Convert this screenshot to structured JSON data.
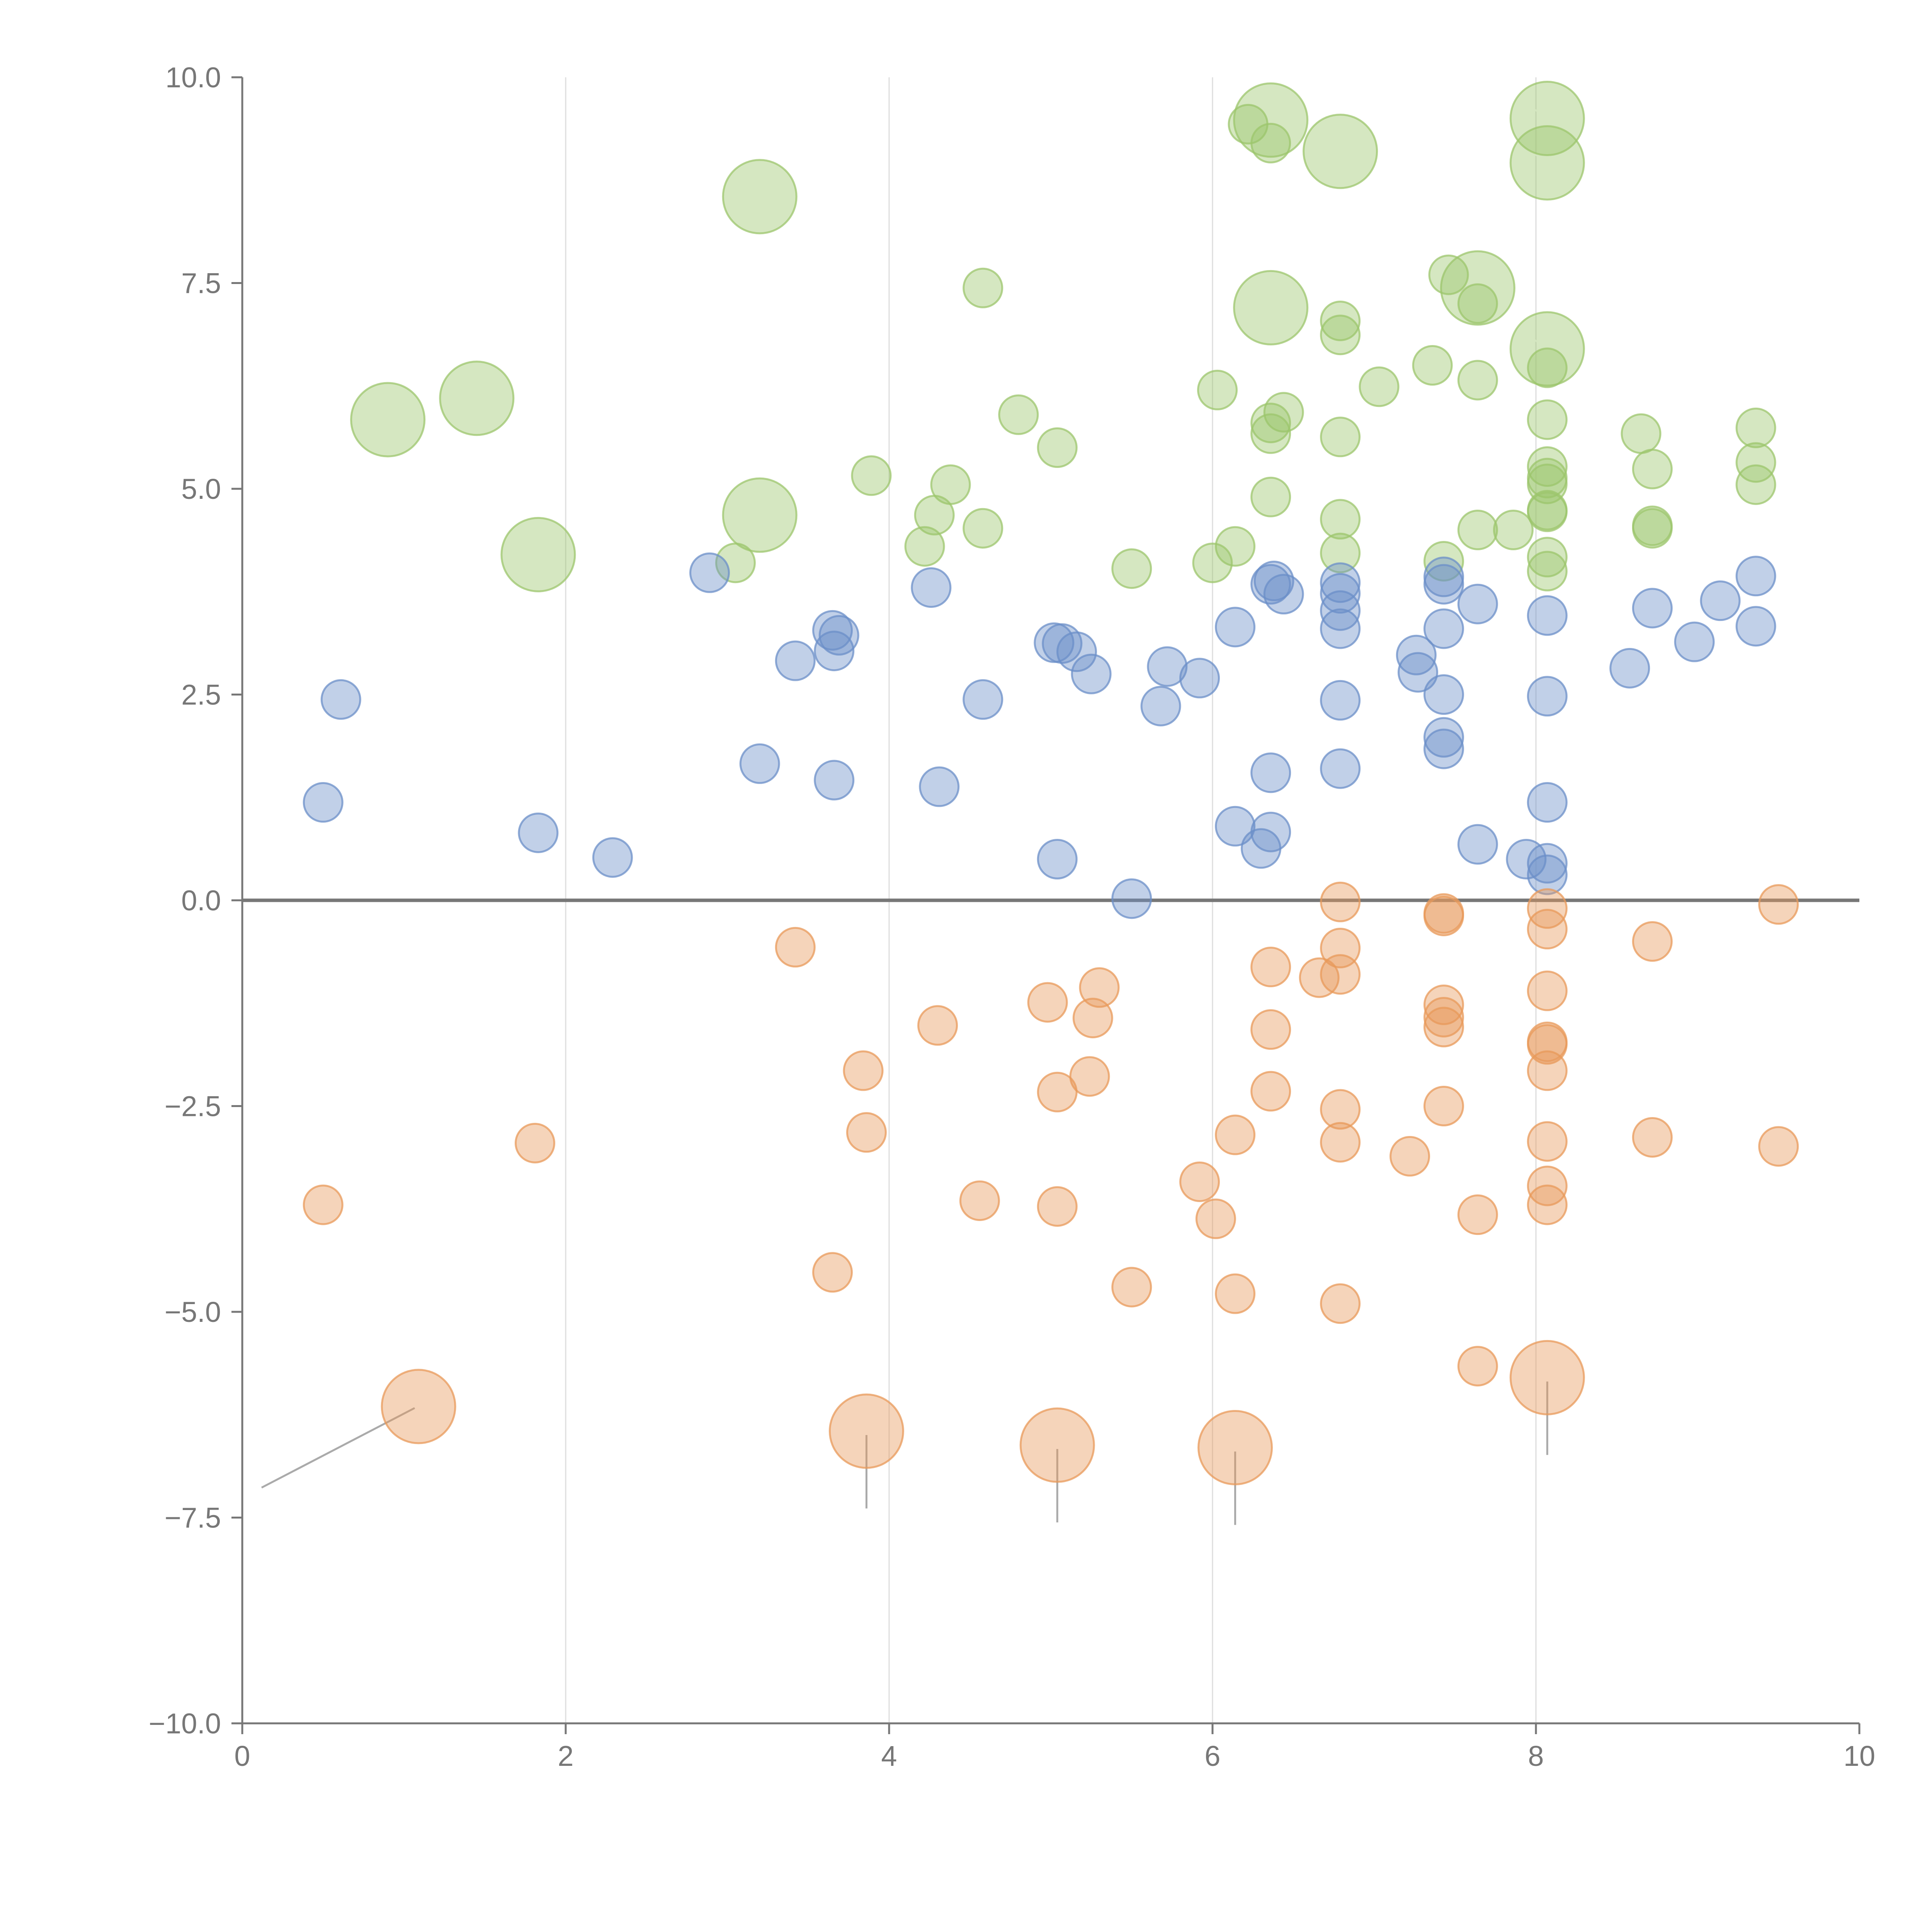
{
  "chart_data": {
    "type": "scatter",
    "title": "",
    "xlabel": "",
    "ylabel": "",
    "xlim": [
      0,
      10
    ],
    "ylim": [
      -10,
      10
    ],
    "grid": "vertical",
    "baseline_y": 0,
    "x_ticks": [
      0,
      2,
      4,
      6,
      8,
      10
    ],
    "x_tick_labels": [
      "0",
      "2",
      "4",
      "6",
      "8",
      "10"
    ],
    "y_ticks": [
      10,
      7.5,
      5,
      2.5,
      0,
      -2.5,
      -5,
      -7.5,
      -10
    ],
    "y_tick_labels": [
      "10.0",
      "7.5",
      "5.0",
      "2.5",
      "0.0",
      "−2.5",
      "−5.0",
      "−7.5",
      "−10.0"
    ],
    "colors": {
      "green": "#9cc56c",
      "blue": "#6b8fc8",
      "orange": "#e8995a",
      "axis": "#777777",
      "grid": "#dddddd",
      "baseline": "#777777",
      "leader": "#aaaaaa"
    },
    "series": [
      {
        "name": "green",
        "color": "#9cc56c",
        "points": [
          {
            "x": 6.22,
            "y": 9.43,
            "s": 1
          },
          {
            "x": 6.36,
            "y": 9.48,
            "s": 2
          },
          {
            "x": 6.36,
            "y": 9.2,
            "s": 1
          },
          {
            "x": 6.79,
            "y": 9.1,
            "s": 2
          },
          {
            "x": 8.07,
            "y": 9.5,
            "s": 2
          },
          {
            "x": 8.07,
            "y": 8.96,
            "s": 2
          },
          {
            "x": 3.2,
            "y": 8.55,
            "s": 2
          },
          {
            "x": 4.58,
            "y": 7.44,
            "s": 1
          },
          {
            "x": 6.36,
            "y": 7.2,
            "s": 2
          },
          {
            "x": 7.64,
            "y": 7.44,
            "s": 2
          },
          {
            "x": 7.46,
            "y": 7.6,
            "s": 1
          },
          {
            "x": 7.64,
            "y": 7.25,
            "s": 1
          },
          {
            "x": 6.79,
            "y": 7.04,
            "s": 1
          },
          {
            "x": 6.79,
            "y": 6.87,
            "s": 1
          },
          {
            "x": 8.07,
            "y": 6.7,
            "s": 2
          },
          {
            "x": 8.07,
            "y": 6.47,
            "s": 1
          },
          {
            "x": 7.36,
            "y": 6.5,
            "s": 1
          },
          {
            "x": 7.64,
            "y": 6.32,
            "s": 1
          },
          {
            "x": 7.03,
            "y": 6.24,
            "s": 1
          },
          {
            "x": 6.03,
            "y": 6.2,
            "s": 1
          },
          {
            "x": 1.45,
            "y": 6.1,
            "s": 2
          },
          {
            "x": 0.9,
            "y": 5.84,
            "s": 2
          },
          {
            "x": 4.8,
            "y": 5.9,
            "s": 1
          },
          {
            "x": 6.44,
            "y": 5.93,
            "s": 1
          },
          {
            "x": 6.36,
            "y": 5.8,
            "s": 1
          },
          {
            "x": 6.36,
            "y": 5.67,
            "s": 1
          },
          {
            "x": 8.07,
            "y": 5.84,
            "s": 1
          },
          {
            "x": 6.79,
            "y": 5.63,
            "s": 1
          },
          {
            "x": 8.65,
            "y": 5.67,
            "s": 1
          },
          {
            "x": 9.36,
            "y": 5.74,
            "s": 1
          },
          {
            "x": 5.04,
            "y": 5.5,
            "s": 1
          },
          {
            "x": 9.36,
            "y": 5.32,
            "s": 1
          },
          {
            "x": 8.07,
            "y": 5.27,
            "s": 1
          },
          {
            "x": 8.72,
            "y": 5.24,
            "s": 1
          },
          {
            "x": 3.89,
            "y": 5.16,
            "s": 1
          },
          {
            "x": 4.38,
            "y": 5.05,
            "s": 1
          },
          {
            "x": 8.07,
            "y": 5.13,
            "s": 1
          },
          {
            "x": 8.07,
            "y": 5.06,
            "s": 1
          },
          {
            "x": 9.36,
            "y": 5.05,
            "s": 1
          },
          {
            "x": 6.36,
            "y": 4.9,
            "s": 1
          },
          {
            "x": 3.2,
            "y": 4.68,
            "s": 2
          },
          {
            "x": 4.28,
            "y": 4.68,
            "s": 1
          },
          {
            "x": 6.79,
            "y": 4.63,
            "s": 1
          },
          {
            "x": 8.07,
            "y": 4.74,
            "s": 1
          },
          {
            "x": 8.07,
            "y": 4.72,
            "s": 1
          },
          {
            "x": 8.72,
            "y": 4.55,
            "s": 1
          },
          {
            "x": 8.72,
            "y": 4.52,
            "s": 1
          },
          {
            "x": 4.58,
            "y": 4.52,
            "s": 1
          },
          {
            "x": 7.64,
            "y": 4.5,
            "s": 1
          },
          {
            "x": 7.86,
            "y": 4.5,
            "s": 1
          },
          {
            "x": 4.22,
            "y": 4.3,
            "s": 1
          },
          {
            "x": 6.14,
            "y": 4.3,
            "s": 1
          },
          {
            "x": 1.83,
            "y": 4.2,
            "s": 2
          },
          {
            "x": 6.79,
            "y": 4.22,
            "s": 1
          },
          {
            "x": 3.05,
            "y": 4.1,
            "s": 1
          },
          {
            "x": 6.0,
            "y": 4.1,
            "s": 1
          },
          {
            "x": 7.43,
            "y": 4.12,
            "s": 1
          },
          {
            "x": 8.07,
            "y": 4.17,
            "s": 1
          },
          {
            "x": 8.07,
            "y": 4.0,
            "s": 1
          },
          {
            "x": 5.5,
            "y": 4.03,
            "s": 1
          }
        ]
      },
      {
        "name": "blue",
        "color": "#6b8fc8",
        "points": [
          {
            "x": 2.89,
            "y": 3.98,
            "s": 1
          },
          {
            "x": 4.26,
            "y": 3.8,
            "s": 1
          },
          {
            "x": 6.36,
            "y": 3.84,
            "s": 1
          },
          {
            "x": 6.38,
            "y": 3.88,
            "s": 1
          },
          {
            "x": 6.44,
            "y": 3.72,
            "s": 1
          },
          {
            "x": 6.79,
            "y": 3.86,
            "s": 1
          },
          {
            "x": 6.79,
            "y": 3.73,
            "s": 1
          },
          {
            "x": 6.79,
            "y": 3.52,
            "s": 1
          },
          {
            "x": 6.79,
            "y": 3.3,
            "s": 1
          },
          {
            "x": 7.43,
            "y": 3.93,
            "s": 1
          },
          {
            "x": 7.43,
            "y": 3.84,
            "s": 1
          },
          {
            "x": 7.64,
            "y": 3.6,
            "s": 1
          },
          {
            "x": 7.43,
            "y": 3.3,
            "s": 1
          },
          {
            "x": 8.07,
            "y": 3.46,
            "s": 1
          },
          {
            "x": 8.72,
            "y": 3.55,
            "s": 1
          },
          {
            "x": 9.14,
            "y": 3.64,
            "s": 1
          },
          {
            "x": 9.36,
            "y": 3.94,
            "s": 1
          },
          {
            "x": 9.36,
            "y": 3.33,
            "s": 1
          },
          {
            "x": 8.98,
            "y": 3.14,
            "s": 1
          },
          {
            "x": 3.65,
            "y": 3.28,
            "s": 1
          },
          {
            "x": 3.69,
            "y": 3.22,
            "s": 1
          },
          {
            "x": 3.66,
            "y": 3.03,
            "s": 1
          },
          {
            "x": 3.42,
            "y": 2.91,
            "s": 1
          },
          {
            "x": 5.02,
            "y": 3.13,
            "s": 1
          },
          {
            "x": 5.07,
            "y": 3.12,
            "s": 1
          },
          {
            "x": 5.16,
            "y": 3.02,
            "s": 1
          },
          {
            "x": 5.25,
            "y": 2.75,
            "s": 1
          },
          {
            "x": 6.14,
            "y": 3.32,
            "s": 1
          },
          {
            "x": 7.26,
            "y": 2.98,
            "s": 1
          },
          {
            "x": 7.27,
            "y": 2.77,
            "s": 1
          },
          {
            "x": 8.58,
            "y": 2.82,
            "s": 1
          },
          {
            "x": 5.72,
            "y": 2.84,
            "s": 1
          },
          {
            "x": 5.92,
            "y": 2.7,
            "s": 1
          },
          {
            "x": 5.68,
            "y": 2.36,
            "s": 1
          },
          {
            "x": 4.58,
            "y": 2.44,
            "s": 1
          },
          {
            "x": 6.79,
            "y": 2.43,
            "s": 1
          },
          {
            "x": 7.43,
            "y": 2.5,
            "s": 1
          },
          {
            "x": 8.07,
            "y": 2.48,
            "s": 1
          },
          {
            "x": 0.61,
            "y": 2.44,
            "s": 1
          },
          {
            "x": 7.43,
            "y": 1.98,
            "s": 1
          },
          {
            "x": 7.43,
            "y": 1.84,
            "s": 1
          },
          {
            "x": 3.2,
            "y": 1.66,
            "s": 1
          },
          {
            "x": 6.36,
            "y": 1.55,
            "s": 1
          },
          {
            "x": 6.79,
            "y": 1.6,
            "s": 1
          },
          {
            "x": 3.66,
            "y": 1.46,
            "s": 1
          },
          {
            "x": 4.31,
            "y": 1.38,
            "s": 1
          },
          {
            "x": 0.5,
            "y": 1.19,
            "s": 1
          },
          {
            "x": 8.07,
            "y": 1.19,
            "s": 1
          },
          {
            "x": 6.14,
            "y": 0.9,
            "s": 1
          },
          {
            "x": 6.36,
            "y": 0.83,
            "s": 1
          },
          {
            "x": 6.3,
            "y": 0.63,
            "s": 1
          },
          {
            "x": 7.64,
            "y": 0.68,
            "s": 1
          },
          {
            "x": 1.83,
            "y": 0.82,
            "s": 1
          },
          {
            "x": 2.29,
            "y": 0.52,
            "s": 1
          },
          {
            "x": 5.04,
            "y": 0.5,
            "s": 1
          },
          {
            "x": 7.94,
            "y": 0.5,
            "s": 1
          },
          {
            "x": 8.07,
            "y": 0.45,
            "s": 1
          },
          {
            "x": 8.07,
            "y": 0.31,
            "s": 1
          },
          {
            "x": 5.5,
            "y": 0.02,
            "s": 1
          }
        ]
      },
      {
        "name": "orange",
        "color": "#e8995a",
        "points": [
          {
            "x": 6.79,
            "y": -0.02,
            "s": 1
          },
          {
            "x": 7.43,
            "y": -0.16,
            "s": 1
          },
          {
            "x": 7.43,
            "y": -0.19,
            "s": 1
          },
          {
            "x": 8.07,
            "y": -0.1,
            "s": 1
          },
          {
            "x": 8.07,
            "y": -0.35,
            "s": 1
          },
          {
            "x": 9.5,
            "y": -0.05,
            "s": 1
          },
          {
            "x": 3.42,
            "y": -0.57,
            "s": 1
          },
          {
            "x": 6.79,
            "y": -0.58,
            "s": 1
          },
          {
            "x": 8.72,
            "y": -0.5,
            "s": 1
          },
          {
            "x": 6.36,
            "y": -0.81,
            "s": 1
          },
          {
            "x": 6.66,
            "y": -0.94,
            "s": 1
          },
          {
            "x": 6.79,
            "y": -0.9,
            "s": 1
          },
          {
            "x": 5.3,
            "y": -1.06,
            "s": 1
          },
          {
            "x": 4.98,
            "y": -1.24,
            "s": 1
          },
          {
            "x": 5.26,
            "y": -1.43,
            "s": 1
          },
          {
            "x": 4.3,
            "y": -1.52,
            "s": 1
          },
          {
            "x": 8.07,
            "y": -1.1,
            "s": 1
          },
          {
            "x": 7.43,
            "y": -1.27,
            "s": 1
          },
          {
            "x": 7.43,
            "y": -1.42,
            "s": 1
          },
          {
            "x": 7.43,
            "y": -1.54,
            "s": 1
          },
          {
            "x": 6.36,
            "y": -1.57,
            "s": 1
          },
          {
            "x": 8.07,
            "y": -1.72,
            "s": 1
          },
          {
            "x": 8.07,
            "y": -1.75,
            "s": 1
          },
          {
            "x": 3.84,
            "y": -2.07,
            "s": 1
          },
          {
            "x": 5.24,
            "y": -2.14,
            "s": 1
          },
          {
            "x": 8.07,
            "y": -2.07,
            "s": 1
          },
          {
            "x": 5.04,
            "y": -2.33,
            "s": 1
          },
          {
            "x": 6.36,
            "y": -2.32,
            "s": 1
          },
          {
            "x": 6.79,
            "y": -2.54,
            "s": 1
          },
          {
            "x": 7.43,
            "y": -2.5,
            "s": 1
          },
          {
            "x": 3.86,
            "y": -2.82,
            "s": 1
          },
          {
            "x": 1.81,
            "y": -2.95,
            "s": 1
          },
          {
            "x": 6.14,
            "y": -2.85,
            "s": 1
          },
          {
            "x": 6.79,
            "y": -2.94,
            "s": 1
          },
          {
            "x": 7.22,
            "y": -3.11,
            "s": 1
          },
          {
            "x": 8.07,
            "y": -2.93,
            "s": 1
          },
          {
            "x": 8.72,
            "y": -2.88,
            "s": 1
          },
          {
            "x": 9.5,
            "y": -2.99,
            "s": 1
          },
          {
            "x": 5.92,
            "y": -3.42,
            "s": 1
          },
          {
            "x": 8.07,
            "y": -3.47,
            "s": 1
          },
          {
            "x": 0.5,
            "y": -3.7,
            "s": 1
          },
          {
            "x": 4.56,
            "y": -3.65,
            "s": 1
          },
          {
            "x": 5.04,
            "y": -3.72,
            "s": 1
          },
          {
            "x": 6.02,
            "y": -3.87,
            "s": 1
          },
          {
            "x": 7.64,
            "y": -3.82,
            "s": 1
          },
          {
            "x": 8.07,
            "y": -3.7,
            "s": 1
          },
          {
            "x": 3.65,
            "y": -4.52,
            "s": 1
          },
          {
            "x": 5.5,
            "y": -4.7,
            "s": 1
          },
          {
            "x": 6.14,
            "y": -4.78,
            "s": 1
          },
          {
            "x": 6.79,
            "y": -4.9,
            "s": 1
          },
          {
            "x": 7.64,
            "y": -5.66,
            "s": 1
          },
          {
            "x": 8.07,
            "y": -5.8,
            "s": 2
          },
          {
            "x": 1.09,
            "y": -6.15,
            "s": 2
          },
          {
            "x": 3.86,
            "y": -6.45,
            "s": 2
          },
          {
            "x": 5.04,
            "y": -6.62,
            "s": 2
          },
          {
            "x": 6.14,
            "y": -6.65,
            "s": 2
          }
        ]
      }
    ]
  }
}
